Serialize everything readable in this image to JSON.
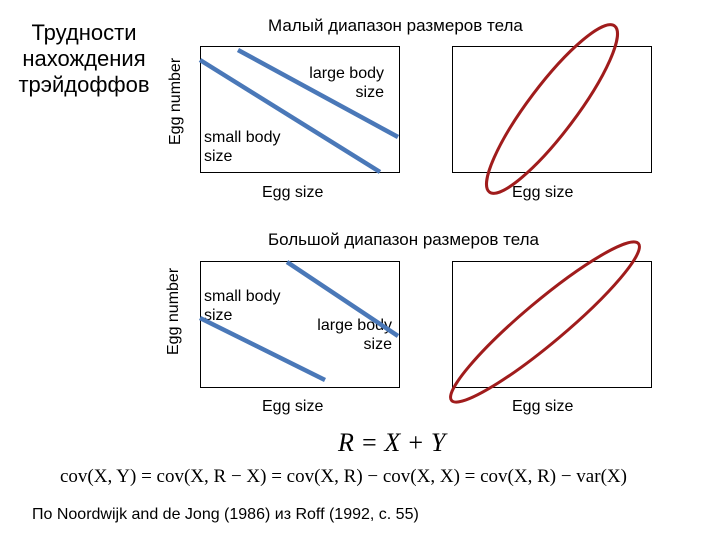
{
  "header": {
    "left_title": "Трудности нахождения трэйдоффов"
  },
  "top_row": {
    "title": "Малый диапазон размеров тела",
    "ylabel": "Egg number",
    "left_panel": {
      "xlabel": "Egg size",
      "large_label": "large body size",
      "small_label": "small body size"
    },
    "right_panel": {
      "xlabel": "Egg size"
    }
  },
  "bottom_row": {
    "title": "Большой диапазон размеров тела",
    "ylabel": "Egg number",
    "left_panel": {
      "xlabel": "Egg size",
      "small_label": "small body size",
      "large_label": "large body size"
    },
    "right_panel": {
      "xlabel": "Egg size"
    }
  },
  "formulas": {
    "eq1": "R = X + Y",
    "eq2": "cov(X, Y) = cov(X, R − X) = cov(X, R) − cov(X, X) = cov(X, R) − var(X)"
  },
  "source": "По Noordwijk and de Jong (1986) из Roff (1992, с. 55)",
  "colors": {
    "line_blue": "#4a78b8",
    "ellipse_red": "#a01c1c",
    "frame": "#000000"
  }
}
